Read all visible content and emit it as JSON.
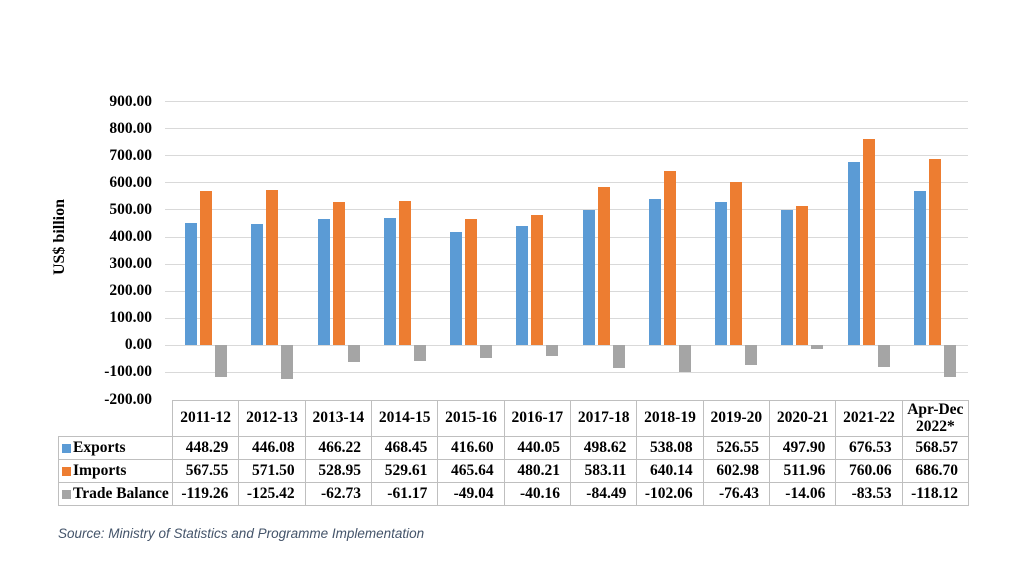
{
  "chart_data": {
    "type": "bar",
    "title": "",
    "ylabel": "US$ billion",
    "categories": [
      "2011-12",
      "2012-13",
      "2013-14",
      "2014-15",
      "2015-16",
      "2016-17",
      "2017-18",
      "2018-19",
      "2019-20",
      "2020-21",
      "2021-22",
      "Apr-Dec 2022*"
    ],
    "series": [
      {
        "name": "Exports",
        "color": "#5B9BD5",
        "values": [
          448.29,
          446.08,
          466.22,
          468.45,
          416.6,
          440.05,
          498.62,
          538.08,
          526.55,
          497.9,
          676.53,
          568.57
        ]
      },
      {
        "name": "Imports",
        "color": "#ED7D31",
        "values": [
          567.55,
          571.5,
          528.95,
          529.61,
          465.64,
          480.21,
          583.11,
          640.14,
          602.98,
          511.96,
          760.06,
          686.7
        ]
      },
      {
        "name": "Trade Balance",
        "color": "#A5A5A5",
        "values": [
          -119.26,
          -125.42,
          -62.73,
          -61.17,
          -49.04,
          -40.16,
          -84.49,
          -102.06,
          -76.43,
          -14.06,
          -83.53,
          -118.12
        ]
      }
    ],
    "ylim": [
      -200,
      900
    ],
    "ytick_step": 100,
    "grid": true,
    "legend_position": "table-row-labels",
    "value_format": "2dp"
  },
  "source": {
    "text": "Source: Ministry of Statistics and Programme Implementation"
  },
  "colors": {
    "grid": "#D9D9D9",
    "table_border": "#BFBFBF",
    "source_text": "#44546A",
    "background": "#FFFFFF"
  }
}
